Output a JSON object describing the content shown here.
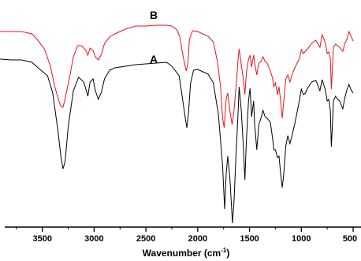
{
  "chart_data": {
    "type": "line",
    "title": "",
    "xlabel": "Wavenumber (cm",
    "xlabel_sup": "-1",
    "xlabel_close": ")",
    "ylabel": "",
    "xlim": [
      4000,
      500
    ],
    "x_reversed": true,
    "grid": false,
    "x_ticks": [
      3500,
      3000,
      2500,
      2000,
      1500,
      1000,
      500
    ],
    "x_tick_labels": [
      "3500",
      "3000",
      "2500",
      "2000",
      "1500",
      "1000",
      "500"
    ],
    "series": [
      {
        "name": "A",
        "color": "#000000",
        "points": [
          [
            3980,
            73
          ],
          [
            3900,
            75
          ],
          [
            3800,
            76
          ],
          [
            3700,
            76
          ],
          [
            3600,
            79
          ],
          [
            3550,
            85
          ],
          [
            3450,
            96
          ],
          [
            3400,
            118
          ],
          [
            3350,
            165
          ],
          [
            3320,
            200
          ],
          [
            3300,
            214
          ],
          [
            3280,
            205
          ],
          [
            3250,
            160
          ],
          [
            3200,
            115
          ],
          [
            3150,
            98
          ],
          [
            3100,
            104
          ],
          [
            3060,
            122
          ],
          [
            3040,
            104
          ],
          [
            3010,
            100
          ],
          [
            2990,
            114
          ],
          [
            2960,
            126
          ],
          [
            2930,
            117
          ],
          [
            2900,
            100
          ],
          [
            2850,
            89
          ],
          [
            2800,
            86
          ],
          [
            2700,
            84
          ],
          [
            2600,
            82
          ],
          [
            2500,
            81
          ],
          [
            2400,
            80
          ],
          [
            2300,
            79
          ],
          [
            2250,
            84
          ],
          [
            2180,
            96
          ],
          [
            2150,
            122
          ],
          [
            2120,
            150
          ],
          [
            2105,
            162
          ],
          [
            2090,
            145
          ],
          [
            2070,
            106
          ],
          [
            2040,
            89
          ],
          [
            2000,
            88
          ],
          [
            1950,
            91
          ],
          [
            1900,
            94
          ],
          [
            1850,
            105
          ],
          [
            1800,
            145
          ],
          [
            1760,
            210
          ],
          [
            1740,
            265
          ],
          [
            1725,
            220
          ],
          [
            1710,
            198
          ],
          [
            1690,
            225
          ],
          [
            1665,
            283
          ],
          [
            1650,
            255
          ],
          [
            1630,
            195
          ],
          [
            1610,
            142
          ],
          [
            1600,
            110
          ],
          [
            1580,
            140
          ],
          [
            1560,
            185
          ],
          [
            1545,
            228
          ],
          [
            1530,
            178
          ],
          [
            1510,
            128
          ],
          [
            1495,
            112
          ],
          [
            1480,
            148
          ],
          [
            1460,
            128
          ],
          [
            1450,
            158
          ],
          [
            1430,
            190
          ],
          [
            1410,
            158
          ],
          [
            1390,
            150
          ],
          [
            1370,
            140
          ],
          [
            1350,
            148
          ],
          [
            1330,
            150
          ],
          [
            1300,
            155
          ],
          [
            1280,
            173
          ],
          [
            1265,
            190
          ],
          [
            1250,
            190
          ],
          [
            1230,
            200
          ],
          [
            1215,
            198
          ],
          [
            1200,
            220
          ],
          [
            1185,
            238
          ],
          [
            1170,
            222
          ],
          [
            1150,
            185
          ],
          [
            1130,
            172
          ],
          [
            1110,
            182
          ],
          [
            1090,
            172
          ],
          [
            1060,
            155
          ],
          [
            1040,
            142
          ],
          [
            1020,
            128
          ],
          [
            1000,
            113
          ],
          [
            980,
            120
          ],
          [
            960,
            118
          ],
          [
            940,
            112
          ],
          [
            900,
            104
          ],
          [
            860,
            102
          ],
          [
            820,
            115
          ],
          [
            800,
            101
          ],
          [
            770,
            113
          ],
          [
            750,
            128
          ],
          [
            735,
            126
          ],
          [
            720,
            140
          ],
          [
            710,
            186
          ],
          [
            700,
            160
          ],
          [
            690,
            128
          ],
          [
            670,
            122
          ],
          [
            650,
            126
          ],
          [
            630,
            128
          ],
          [
            600,
            138
          ],
          [
            580,
            124
          ],
          [
            560,
            114
          ],
          [
            540,
            107
          ],
          [
            520,
            114
          ],
          [
            500,
            118
          ]
        ]
      },
      {
        "name": "B",
        "color": "#e8141c",
        "points": [
          [
            3980,
            38
          ],
          [
            3900,
            40
          ],
          [
            3800,
            40
          ],
          [
            3700,
            40
          ],
          [
            3600,
            43
          ],
          [
            3550,
            50
          ],
          [
            3480,
            62
          ],
          [
            3420,
            85
          ],
          [
            3380,
            110
          ],
          [
            3340,
            128
          ],
          [
            3320,
            135
          ],
          [
            3300,
            136
          ],
          [
            3280,
            125
          ],
          [
            3240,
            100
          ],
          [
            3200,
            72
          ],
          [
            3160,
            58
          ],
          [
            3120,
            58
          ],
          [
            3080,
            64
          ],
          [
            3060,
            70
          ],
          [
            3040,
            61
          ],
          [
            3010,
            64
          ],
          [
            2990,
            72
          ],
          [
            2960,
            76
          ],
          [
            2930,
            69
          ],
          [
            2900,
            55
          ],
          [
            2850,
            47
          ],
          [
            2800,
            43
          ],
          [
            2700,
            37
          ],
          [
            2600,
            33
          ],
          [
            2500,
            33
          ],
          [
            2400,
            32
          ],
          [
            2300,
            32
          ],
          [
            2250,
            33
          ],
          [
            2200,
            38
          ],
          [
            2170,
            48
          ],
          [
            2150,
            65
          ],
          [
            2120,
            85
          ],
          [
            2110,
            90
          ],
          [
            2095,
            80
          ],
          [
            2080,
            50
          ],
          [
            2050,
            39
          ],
          [
            2000,
            40
          ],
          [
            1950,
            43
          ],
          [
            1900,
            46
          ],
          [
            1850,
            53
          ],
          [
            1810,
            78
          ],
          [
            1780,
            110
          ],
          [
            1760,
            150
          ],
          [
            1745,
            162
          ],
          [
            1725,
            125
          ],
          [
            1710,
            118
          ],
          [
            1690,
            140
          ],
          [
            1668,
            158
          ],
          [
            1650,
            140
          ],
          [
            1630,
            110
          ],
          [
            1610,
            75
          ],
          [
            1600,
            62
          ],
          [
            1580,
            82
          ],
          [
            1560,
            100
          ],
          [
            1545,
            120
          ],
          [
            1530,
            92
          ],
          [
            1510,
            75
          ],
          [
            1495,
            70
          ],
          [
            1480,
            85
          ],
          [
            1460,
            70
          ],
          [
            1450,
            80
          ],
          [
            1430,
            95
          ],
          [
            1410,
            80
          ],
          [
            1390,
            78
          ],
          [
            1370,
            72
          ],
          [
            1350,
            78
          ],
          [
            1330,
            80
          ],
          [
            1300,
            90
          ],
          [
            1280,
            98
          ],
          [
            1265,
            110
          ],
          [
            1250,
            105
          ],
          [
            1230,
            120
          ],
          [
            1215,
            110
          ],
          [
            1200,
            128
          ],
          [
            1185,
            150
          ],
          [
            1170,
            130
          ],
          [
            1150,
            100
          ],
          [
            1130,
            95
          ],
          [
            1110,
            104
          ],
          [
            1090,
            95
          ],
          [
            1060,
            85
          ],
          [
            1040,
            80
          ],
          [
            1020,
            75
          ],
          [
            1000,
            63
          ],
          [
            980,
            68
          ],
          [
            960,
            65
          ],
          [
            940,
            62
          ],
          [
            900,
            55
          ],
          [
            860,
            51
          ],
          [
            820,
            60
          ],
          [
            800,
            44
          ],
          [
            770,
            53
          ],
          [
            750,
            68
          ],
          [
            735,
            66
          ],
          [
            720,
            74
          ],
          [
            710,
            113
          ],
          [
            700,
            88
          ],
          [
            690,
            60
          ],
          [
            670,
            56
          ],
          [
            650,
            58
          ],
          [
            630,
            60
          ],
          [
            600,
            65
          ],
          [
            580,
            55
          ],
          [
            560,
            50
          ],
          [
            540,
            40
          ],
          [
            520,
            46
          ],
          [
            500,
            52
          ]
        ]
      }
    ]
  }
}
